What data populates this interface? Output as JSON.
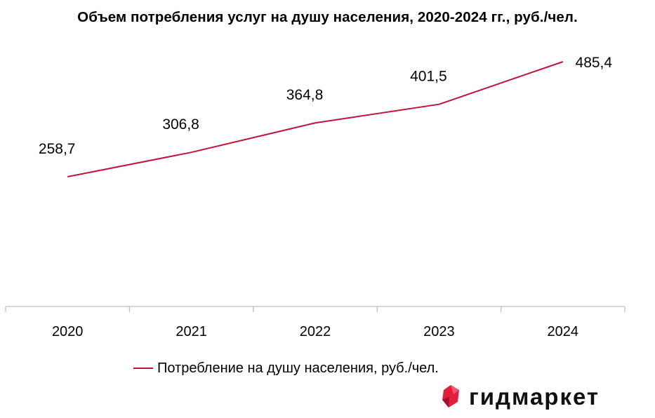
{
  "title": "Объем потребления услуг на душу населения, 2020-2024 гг., руб./чел.",
  "chart_data": {
    "type": "line",
    "title": "Объем потребления услуг на душу населения, 2020-2024 гг., руб./чел.",
    "categories": [
      "2020",
      "2021",
      "2022",
      "2023",
      "2024"
    ],
    "series": [
      {
        "name": "Потребление на душу населения, руб./чел.",
        "values": [
          258.7,
          306.8,
          364.8,
          401.5,
          485.4
        ],
        "value_labels": [
          "258,7",
          "306,8",
          "364,8",
          "401,5",
          "485,4"
        ],
        "color": "#c0143c"
      }
    ],
    "ylim": [
      0,
      520
    ],
    "grid": false,
    "legend_position": "bottom"
  },
  "legend": {
    "label": "Потребление на душу населения, руб./чел."
  },
  "logo": {
    "text": "гидмаркет",
    "color": "#e31e3c",
    "icon": "ruby-gem-icon"
  }
}
